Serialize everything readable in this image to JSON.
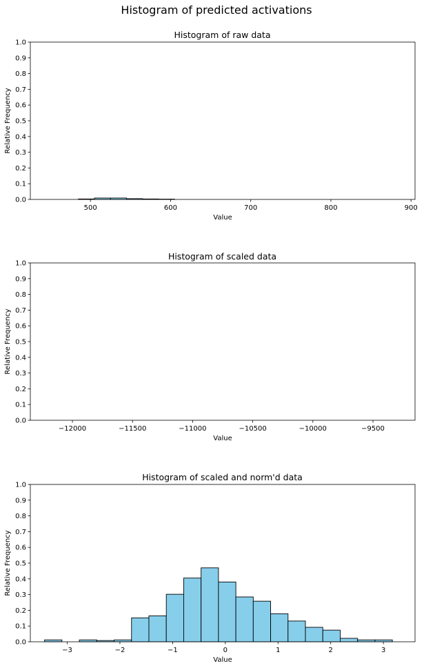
{
  "figure": {
    "suptitle": "Histogram of predicted activations"
  },
  "chart_data": [
    {
      "type": "histogram",
      "title": "Histogram of raw data",
      "xlabel": "Value",
      "ylabel": "Relative Frequency",
      "xlim": [
        425,
        905
      ],
      "ylim": [
        0,
        1.0
      ],
      "xticks": [
        500,
        600,
        700,
        800,
        900
      ],
      "yticks": [
        0.0,
        0.1,
        0.2,
        0.3,
        0.4,
        0.5,
        0.6,
        0.7,
        0.8,
        0.9,
        1.0
      ],
      "ytick_labels": [
        "0.0",
        "0.1",
        "0.2",
        "0.3",
        "0.4",
        "0.5",
        "0.6",
        "0.7",
        "0.8",
        "0.9",
        "1.0"
      ],
      "bins": [
        {
          "x0": 485,
          "x1": 505,
          "value": 0.003
        },
        {
          "x0": 505,
          "x1": 525,
          "value": 0.009
        },
        {
          "x0": 525,
          "x1": 545,
          "value": 0.009
        },
        {
          "x0": 545,
          "x1": 565,
          "value": 0.005
        },
        {
          "x0": 565,
          "x1": 585,
          "value": 0.003
        },
        {
          "x0": 585,
          "x1": 605,
          "value": 0.002
        }
      ],
      "bar_color": "#87CEEB",
      "edge_color": "#000000",
      "grid": false
    },
    {
      "type": "histogram",
      "title": "Histogram of scaled data",
      "xlabel": "Value",
      "ylabel": "Relative Frequency",
      "xlim": [
        -12350,
        -9150
      ],
      "ylim": [
        0,
        1.0
      ],
      "xticks": [
        -12000,
        -11500,
        -11000,
        -10500,
        -10000,
        -9500
      ],
      "xtick_labels": [
        "−12000",
        "−11500",
        "−11000",
        "−10500",
        "−10000",
        "−9500"
      ],
      "yticks": [
        0.0,
        0.1,
        0.2,
        0.3,
        0.4,
        0.5,
        0.6,
        0.7,
        0.8,
        0.9,
        1.0
      ],
      "ytick_labels": [
        "0.0",
        "0.1",
        "0.2",
        "0.3",
        "0.4",
        "0.5",
        "0.6",
        "0.7",
        "0.8",
        "0.9",
        "1.0"
      ],
      "bins": [],
      "bar_color": "#87CEEB",
      "edge_color": "#000000",
      "grid": false
    },
    {
      "type": "histogram",
      "title": "Histogram of scaled and norm'd data",
      "xlabel": "Value",
      "ylabel": "Relative Frequency",
      "xlim": [
        -3.7,
        3.6
      ],
      "ylim": [
        0,
        1.0
      ],
      "xticks": [
        -3,
        -2,
        -1,
        0,
        1,
        2,
        3
      ],
      "xtick_labels": [
        "−3",
        "−2",
        "−1",
        "0",
        "1",
        "2",
        "3"
      ],
      "yticks": [
        0.0,
        0.1,
        0.2,
        0.3,
        0.4,
        0.5,
        0.6,
        0.7,
        0.8,
        0.9,
        1.0
      ],
      "ytick_labels": [
        "0.0",
        "0.1",
        "0.2",
        "0.3",
        "0.4",
        "0.5",
        "0.6",
        "0.7",
        "0.8",
        "0.9",
        "1.0"
      ],
      "bins": [
        {
          "x0": -3.43,
          "x1": -3.1,
          "value": 0.012
        },
        {
          "x0": -3.1,
          "x1": -2.77,
          "value": 0.0
        },
        {
          "x0": -2.77,
          "x1": -2.44,
          "value": 0.012
        },
        {
          "x0": -2.44,
          "x1": -2.11,
          "value": 0.008
        },
        {
          "x0": -2.11,
          "x1": -1.78,
          "value": 0.012
        },
        {
          "x0": -1.78,
          "x1": -1.45,
          "value": 0.152
        },
        {
          "x0": -1.45,
          "x1": -1.12,
          "value": 0.165
        },
        {
          "x0": -1.12,
          "x1": -0.79,
          "value": 0.302
        },
        {
          "x0": -0.79,
          "x1": -0.46,
          "value": 0.405
        },
        {
          "x0": -0.46,
          "x1": -0.13,
          "value": 0.47
        },
        {
          "x0": -0.13,
          "x1": 0.2,
          "value": 0.38
        },
        {
          "x0": 0.2,
          "x1": 0.53,
          "value": 0.285
        },
        {
          "x0": 0.53,
          "x1": 0.86,
          "value": 0.258
        },
        {
          "x0": 0.86,
          "x1": 1.19,
          "value": 0.178
        },
        {
          "x0": 1.19,
          "x1": 1.52,
          "value": 0.132
        },
        {
          "x0": 1.52,
          "x1": 1.85,
          "value": 0.092
        },
        {
          "x0": 1.85,
          "x1": 2.18,
          "value": 0.074
        },
        {
          "x0": 2.18,
          "x1": 2.51,
          "value": 0.022
        },
        {
          "x0": 2.51,
          "x1": 2.84,
          "value": 0.012
        },
        {
          "x0": 2.84,
          "x1": 3.17,
          "value": 0.012
        }
      ],
      "bar_color": "#87CEEB",
      "edge_color": "#000000",
      "grid": false
    }
  ]
}
